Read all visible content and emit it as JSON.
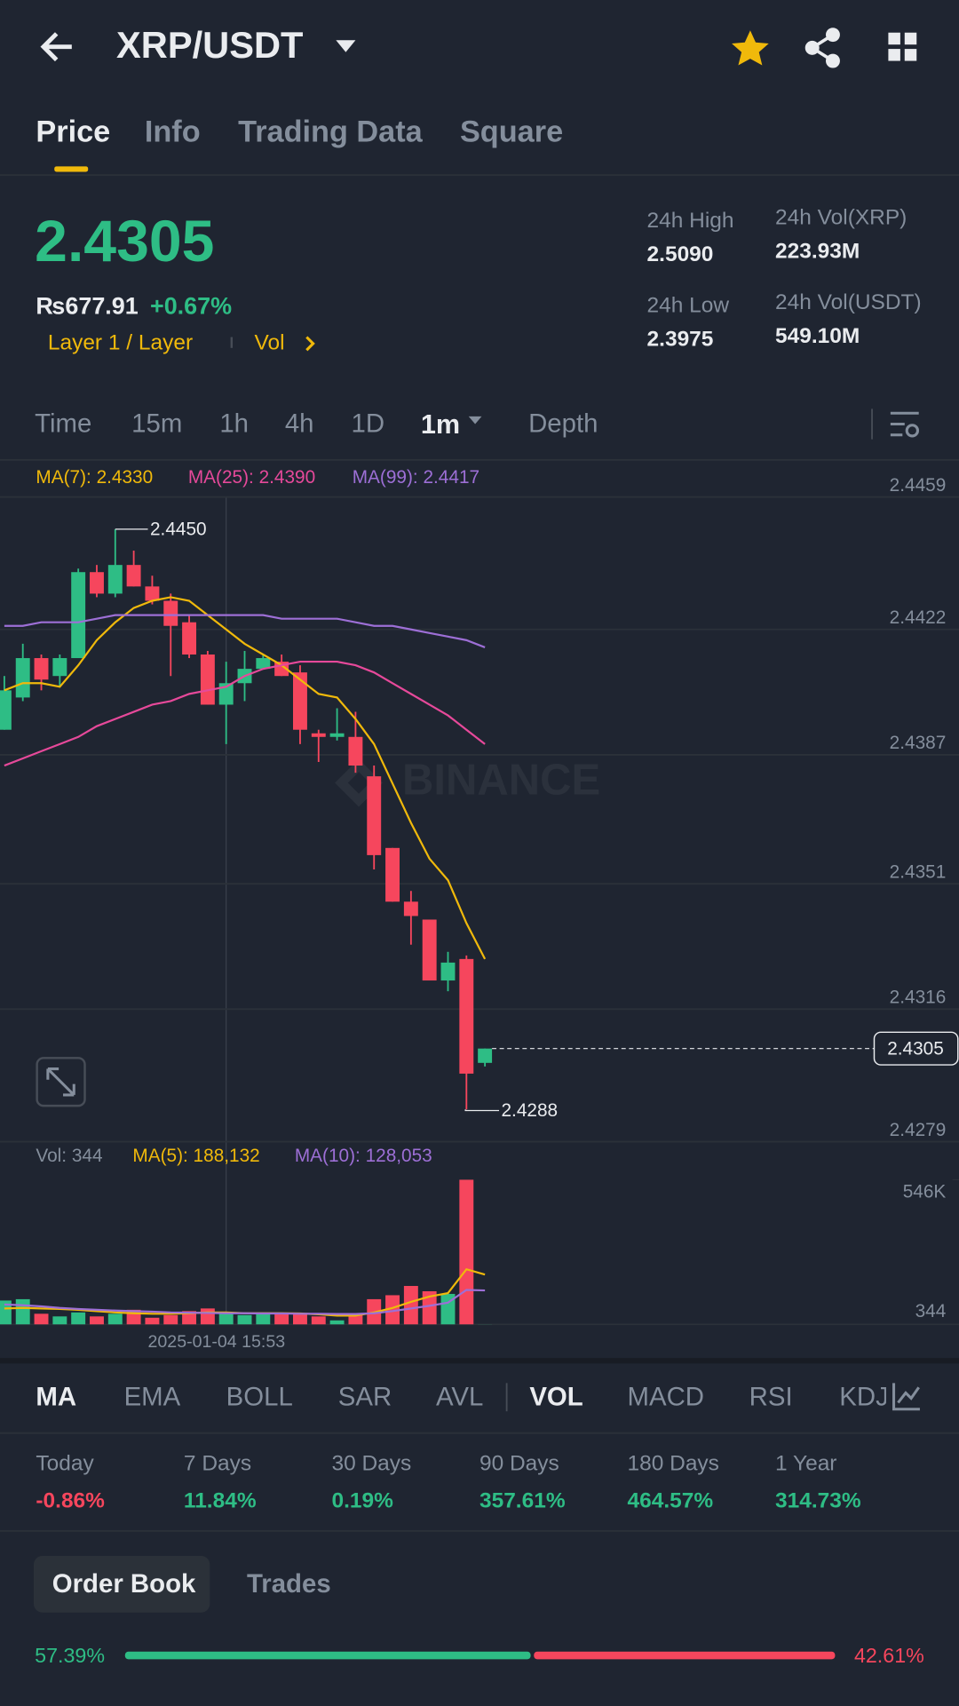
{
  "header": {
    "pair": "XRP/USDT"
  },
  "tabs": [
    "Price",
    "Info",
    "Trading Data",
    "Square"
  ],
  "price": {
    "last": "2.4305",
    "fiat": "₨677.91",
    "change": "+0.67%",
    "tags": [
      "Layer 1 / Layer",
      "Vol"
    ]
  },
  "stats": [
    {
      "label": "24h High",
      "value": "2.5090"
    },
    {
      "label": "24h Low",
      "value": "2.3975"
    },
    {
      "label": "24h Vol(XRP)",
      "value": "223.93M"
    },
    {
      "label": "24h Vol(USDT)",
      "value": "549.10M"
    }
  ],
  "intervals": [
    "Time",
    "15m",
    "1h",
    "4h",
    "1D",
    "1m",
    "Depth"
  ],
  "chart_data": {
    "type": "candlestick",
    "watermark": "BINANCE",
    "open": [
      2.4394,
      2.4403,
      2.4414,
      2.4409,
      2.4414,
      2.4438,
      2.4432,
      2.444,
      2.4434,
      2.443,
      2.4424,
      2.4415,
      2.4401,
      2.4407,
      2.4411,
      2.4413,
      2.441,
      2.4393,
      2.4392,
      2.4392,
      2.4381,
      2.4361,
      2.4346,
      2.4341,
      2.4324,
      2.433,
      2.4301
    ],
    "high": [
      2.4409,
      2.4418,
      2.4415,
      2.4415,
      2.4439,
      2.444,
      2.445,
      2.4444,
      2.4437,
      2.4432,
      2.4426,
      2.4416,
      2.4413,
      2.4416,
      2.4415,
      2.4415,
      2.4412,
      2.4394,
      2.44,
      2.4399,
      2.4384,
      2.4361,
      2.4349,
      2.4341,
      2.4332,
      2.4331,
      2.4305
    ],
    "low": [
      2.4394,
      2.4402,
      2.4405,
      2.4406,
      2.4414,
      2.4431,
      2.4431,
      2.4434,
      2.4429,
      2.4409,
      2.4414,
      2.4401,
      2.439,
      2.4402,
      2.4412,
      2.4409,
      2.439,
      2.4385,
      2.4391,
      2.4382,
      2.4355,
      2.4346,
      2.4334,
      2.4324,
      2.4321,
      2.4288,
      2.43
    ],
    "close": [
      2.4405,
      2.4414,
      2.4408,
      2.4414,
      2.4438,
      2.4432,
      2.444,
      2.4434,
      2.443,
      2.4423,
      2.4415,
      2.4401,
      2.4407,
      2.4411,
      2.4414,
      2.4409,
      2.4394,
      2.4392,
      2.4393,
      2.4384,
      2.4359,
      2.4346,
      2.4342,
      2.4324,
      2.4329,
      2.4298,
      2.4305
    ],
    "up_color": "#2ebd85",
    "down_color": "#f6465d",
    "series": [
      {
        "name": "MA(7): 2.4330",
        "color": "#f0b90b",
        "values": [
          2.4405,
          2.4407,
          2.4407,
          2.4406,
          2.4412,
          2.4419,
          2.4424,
          2.4428,
          2.443,
          2.4431,
          2.443,
          2.4426,
          2.4422,
          2.4418,
          2.4415,
          2.4412,
          2.4408,
          2.4404,
          2.4403,
          2.4397,
          2.439,
          2.4379,
          2.4368,
          2.4358,
          2.4352,
          2.434,
          2.433
        ]
      },
      {
        "name": "MA(25): 2.4390",
        "color": "#e6499a",
        "values": [
          2.4384,
          2.4386,
          2.4388,
          2.439,
          2.4392,
          2.4395,
          2.4397,
          2.4399,
          2.4401,
          2.4402,
          2.4404,
          2.4405,
          2.4406,
          2.4409,
          2.4411,
          2.4412,
          2.4413,
          2.4413,
          2.4413,
          2.4412,
          2.441,
          2.4407,
          2.4404,
          2.4401,
          2.4398,
          2.4394,
          2.439
        ]
      },
      {
        "name": "MA(99): 2.4417",
        "color": "#9d6fd6",
        "values": [
          2.4423,
          2.4423,
          2.4424,
          2.4424,
          2.4424,
          2.4425,
          2.4426,
          2.4426,
          2.4426,
          2.4426,
          2.4426,
          2.4426,
          2.4426,
          2.4426,
          2.4426,
          2.4425,
          2.4425,
          2.4425,
          2.4425,
          2.4424,
          2.4423,
          2.4423,
          2.4422,
          2.4421,
          2.442,
          2.4419,
          2.4417
        ]
      }
    ],
    "ylim": [
      2.4279,
      2.4459
    ],
    "yticks": [
      2.4459,
      2.4422,
      2.4387,
      2.4351,
      2.4316,
      2.4279
    ],
    "grid": true,
    "annotations": [
      {
        "value": 2.445,
        "label": "2.4450"
      },
      {
        "value": 2.4288,
        "label": "2.4288"
      }
    ],
    "last_price": 2.4305,
    "crosshair_label": "2025-01-04 15:53",
    "volume": {
      "name": "Vol: 344",
      "values": [
        90000,
        95000,
        40000,
        30000,
        45000,
        30000,
        40000,
        55000,
        25000,
        35000,
        50000,
        60000,
        40000,
        35000,
        45000,
        40000,
        40000,
        30000,
        15000,
        40000,
        95000,
        110000,
        145000,
        125000,
        115000,
        546000,
        344
      ],
      "series": [
        {
          "name": "MA(5): 188,132",
          "color": "#f0b90b",
          "values": [
            60000,
            62000,
            60000,
            58000,
            55000,
            50000,
            45000,
            42000,
            40000,
            40000,
            42000,
            45000,
            45000,
            42000,
            42000,
            42000,
            41000,
            38000,
            33000,
            33000,
            45000,
            62000,
            85000,
            105000,
            118000,
            208000,
            188132
          ]
        },
        {
          "name": "MA(10): 128,053",
          "color": "#9d6fd6",
          "values": [
            75000,
            72000,
            68000,
            62000,
            58000,
            55000,
            52000,
            50000,
            48000,
            45000,
            44000,
            43000,
            42000,
            42000,
            41000,
            41000,
            40000,
            40000,
            39000,
            39000,
            42000,
            50000,
            60000,
            70000,
            82000,
            130000,
            128053
          ]
        }
      ],
      "ylim": [
        0,
        546000
      ],
      "yticks": [
        {
          "value": 546000,
          "label": "546K"
        },
        344
      ]
    }
  },
  "indicators": [
    "MA",
    "EMA",
    "BOLL",
    "SAR",
    "AVL",
    "VOL",
    "MACD",
    "RSI",
    "KDJ"
  ],
  "performance": [
    {
      "label": "Today",
      "value": "-0.86%",
      "color": "#f6465d"
    },
    {
      "label": "7 Days",
      "value": "11.84%",
      "color": "#2ebd85"
    },
    {
      "label": "30 Days",
      "value": "0.19%",
      "color": "#2ebd85"
    },
    {
      "label": "90 Days",
      "value": "357.61%",
      "color": "#2ebd85"
    },
    {
      "label": "180 Days",
      "value": "464.57%",
      "color": "#2ebd85"
    },
    {
      "label": "1 Year",
      "value": "314.73%",
      "color": "#2ebd85"
    }
  ],
  "order_book": {
    "tabs": [
      "Order Book",
      "Trades"
    ],
    "bid": 57.39,
    "bid_label": "57.39%",
    "ask": 42.61,
    "ask_label": "42.61%"
  }
}
